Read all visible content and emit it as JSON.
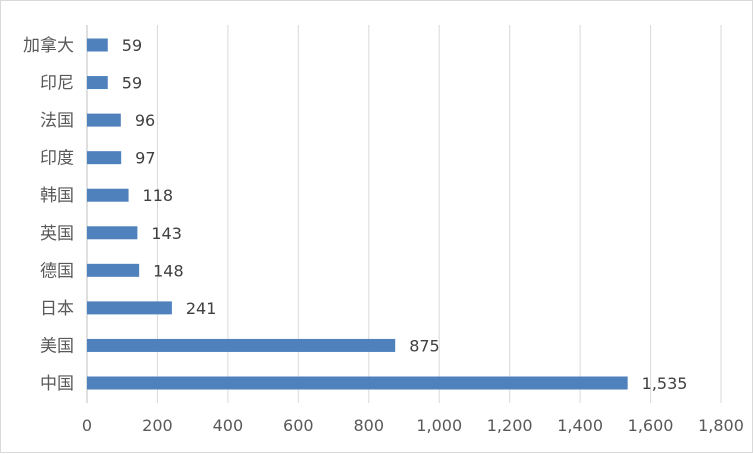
{
  "chart_data": {
    "type": "bar",
    "orientation": "horizontal",
    "categories": [
      "加拿大",
      "印尼",
      "法国",
      "印度",
      "韩国",
      "英国",
      "德国",
      "日本",
      "美国",
      "中国"
    ],
    "values": [
      59,
      59,
      96,
      97,
      118,
      143,
      148,
      241,
      875,
      1535
    ],
    "value_labels": [
      "59",
      "59",
      "96",
      "97",
      "118",
      "143",
      "148",
      "241",
      "875",
      "1,535"
    ],
    "xlim": [
      0,
      1800
    ],
    "xticks": [
      0,
      200,
      400,
      600,
      800,
      1000,
      1200,
      1400,
      1600,
      1800
    ],
    "xtick_labels": [
      "0",
      "200",
      "400",
      "600",
      "800",
      "1,000",
      "1,200",
      "1,400",
      "1,600",
      "1,800"
    ],
    "bar_color": "#4f81bd",
    "grid": true,
    "legend": false
  }
}
